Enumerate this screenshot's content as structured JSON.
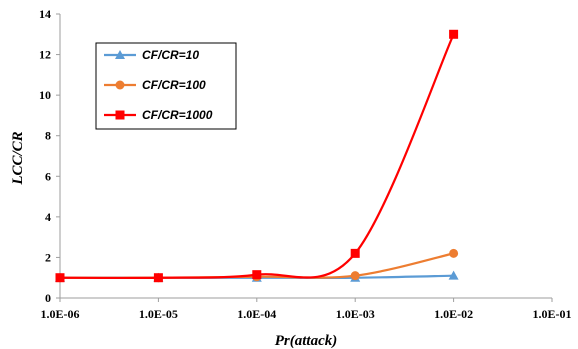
{
  "chart_data": {
    "type": "line",
    "title": "",
    "xlabel": "Pr(attack)",
    "ylabel": "LCC/CR",
    "x_scale": "log",
    "x": [
      1e-06,
      1e-05,
      0.0001,
      0.001,
      0.01
    ],
    "xlim": [
      1e-06,
      0.1
    ],
    "x_tick_labels": [
      "1.0E-06",
      "1.0E-05",
      "1.0E-04",
      "1.0E-03",
      "1.0E-02",
      "1.0E-01"
    ],
    "ylim": [
      0,
      14
    ],
    "y_tick_labels": [
      "0",
      "2",
      "4",
      "6",
      "8",
      "10",
      "12",
      "14"
    ],
    "grid": false,
    "legend_position": "top-left",
    "series": [
      {
        "name": "CF/CR=10",
        "color": "#5b9bd5",
        "marker": "triangle",
        "values": [
          1.0,
          1.0,
          1.0,
          1.0,
          1.1
        ]
      },
      {
        "name": "CF/CR=100",
        "color": "#ed7d31",
        "marker": "circle",
        "values": [
          1.0,
          1.0,
          1.05,
          1.1,
          2.2
        ]
      },
      {
        "name": "CF/CR=1000",
        "color": "#ff0000",
        "marker": "square",
        "values": [
          1.0,
          1.0,
          1.15,
          2.2,
          13.0
        ]
      }
    ]
  }
}
